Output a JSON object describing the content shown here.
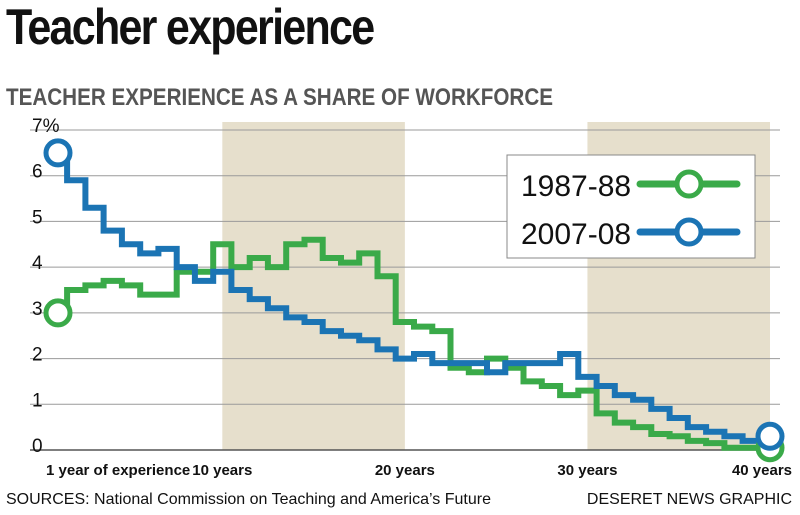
{
  "header": {
    "title": "Teacher experience",
    "subtitle": "TEACHER EXPERIENCE AS A SHARE OF WORKFORCE"
  },
  "footer": {
    "source": "SOURCES:  National Commission on Teaching and America’s Future",
    "credit": "DESERET NEWS GRAPHIC"
  },
  "colors": {
    "series_1987": "#3aaa49",
    "series_2007": "#1b74b4",
    "band": "#e6dfcc",
    "grid": "#9a9a9a"
  },
  "chart_data": {
    "type": "line",
    "title": "Teacher experience",
    "subtitle": "TEACHER EXPERIENCE AS A SHARE OF WORKFORCE",
    "xlim": [
      1,
      40
    ],
    "ylim": [
      0,
      7
    ],
    "x_ticks": [
      {
        "value": 1,
        "label": "1 year of experience"
      },
      {
        "value": 10,
        "label": "10 years"
      },
      {
        "value": 20,
        "label": "20 years"
      },
      {
        "value": 30,
        "label": "30 years"
      },
      {
        "value": 40,
        "label": "40 years"
      }
    ],
    "y_ticks": [
      {
        "value": 0,
        "label": "0"
      },
      {
        "value": 1,
        "label": "1"
      },
      {
        "value": 2,
        "label": "2"
      },
      {
        "value": 3,
        "label": "3"
      },
      {
        "value": 4,
        "label": "4"
      },
      {
        "value": 5,
        "label": "5"
      },
      {
        "value": 6,
        "label": "6"
      },
      {
        "value": 7,
        "label": "7%"
      }
    ],
    "shaded_bands": [
      [
        10,
        20
      ],
      [
        30,
        40
      ]
    ],
    "grid": true,
    "legend_position": "top-right",
    "series": [
      {
        "name": "1987-88",
        "x": [
          1,
          2,
          3,
          4,
          5,
          6,
          7,
          8,
          9,
          10,
          11,
          12,
          13,
          14,
          15,
          16,
          17,
          18,
          19,
          20,
          21,
          22,
          23,
          24,
          25,
          26,
          27,
          28,
          29,
          30,
          31,
          32,
          33,
          34,
          35,
          36,
          37,
          38,
          39,
          40
        ],
        "values": [
          3.0,
          3.5,
          3.6,
          3.7,
          3.6,
          3.4,
          3.4,
          3.9,
          3.9,
          4.5,
          4.0,
          4.2,
          4.0,
          4.5,
          4.6,
          4.2,
          4.1,
          4.3,
          3.8,
          2.8,
          2.7,
          2.6,
          1.8,
          1.7,
          2.0,
          1.8,
          1.5,
          1.4,
          1.2,
          1.3,
          0.8,
          0.6,
          0.5,
          0.35,
          0.3,
          0.2,
          0.15,
          0.05,
          0.05,
          0.05
        ]
      },
      {
        "name": "2007-08",
        "x": [
          1,
          2,
          3,
          4,
          5,
          6,
          7,
          8,
          9,
          10,
          11,
          12,
          13,
          14,
          15,
          16,
          17,
          18,
          19,
          20,
          21,
          22,
          23,
          24,
          25,
          26,
          27,
          28,
          29,
          30,
          31,
          32,
          33,
          34,
          35,
          36,
          37,
          38,
          39,
          40
        ],
        "values": [
          6.5,
          5.9,
          5.3,
          4.8,
          4.5,
          4.3,
          4.4,
          4.0,
          3.7,
          3.9,
          3.5,
          3.3,
          3.1,
          2.9,
          2.8,
          2.6,
          2.5,
          2.4,
          2.2,
          2.0,
          2.1,
          1.9,
          1.9,
          1.9,
          1.7,
          1.9,
          1.9,
          1.9,
          2.1,
          1.6,
          1.4,
          1.2,
          1.1,
          0.9,
          0.7,
          0.5,
          0.4,
          0.3,
          0.2,
          0.3
        ]
      }
    ]
  }
}
